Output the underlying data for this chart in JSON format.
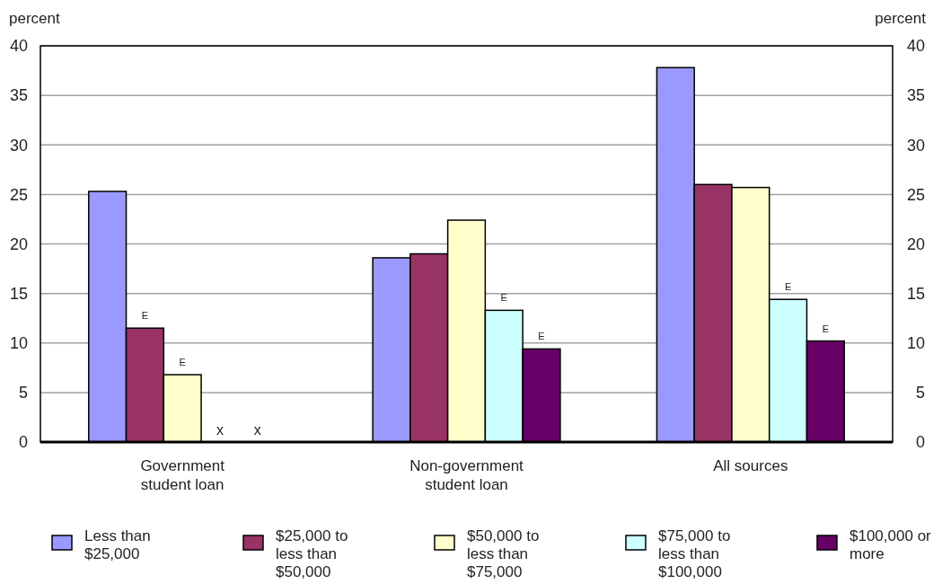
{
  "chart_data": {
    "type": "bar",
    "ylabel": "percent",
    "y2label": "percent",
    "categories": [
      "Government student loan",
      "Non-government student loan",
      "All sources"
    ],
    "series": [
      {
        "name": "Less than $25,000",
        "color": "#9999ff",
        "values": [
          25.3,
          18.6,
          37.8
        ]
      },
      {
        "name": "$25,000 to less than $50,000",
        "color": "#993366",
        "values": [
          11.5,
          19.0,
          26.0
        ],
        "value_labels": [
          "E",
          null,
          null
        ]
      },
      {
        "name": "$50,000 to less than $75,000",
        "color": "#ffffcc",
        "values": [
          6.8,
          22.4,
          25.7
        ],
        "value_labels": [
          "E",
          null,
          null
        ]
      },
      {
        "name": "$75,000 to less than $100,000",
        "color": "#ccffff",
        "values": [
          null,
          13.3,
          14.4
        ],
        "value_labels": [
          "x",
          "E",
          "E"
        ]
      },
      {
        "name": "$100,000 or more",
        "color": "#660066",
        "values": [
          null,
          9.4,
          10.2
        ],
        "value_labels": [
          "x",
          "E",
          "E"
        ]
      }
    ],
    "ylim": [
      0,
      40
    ],
    "yticks": [
      0,
      5,
      10,
      15,
      20,
      25,
      30,
      35,
      40
    ],
    "y2lim": [
      0,
      40
    ],
    "y2ticks": [
      0,
      5,
      10,
      15,
      20,
      25,
      30,
      35,
      40
    ],
    "grid": "y",
    "legend": "bottom"
  }
}
